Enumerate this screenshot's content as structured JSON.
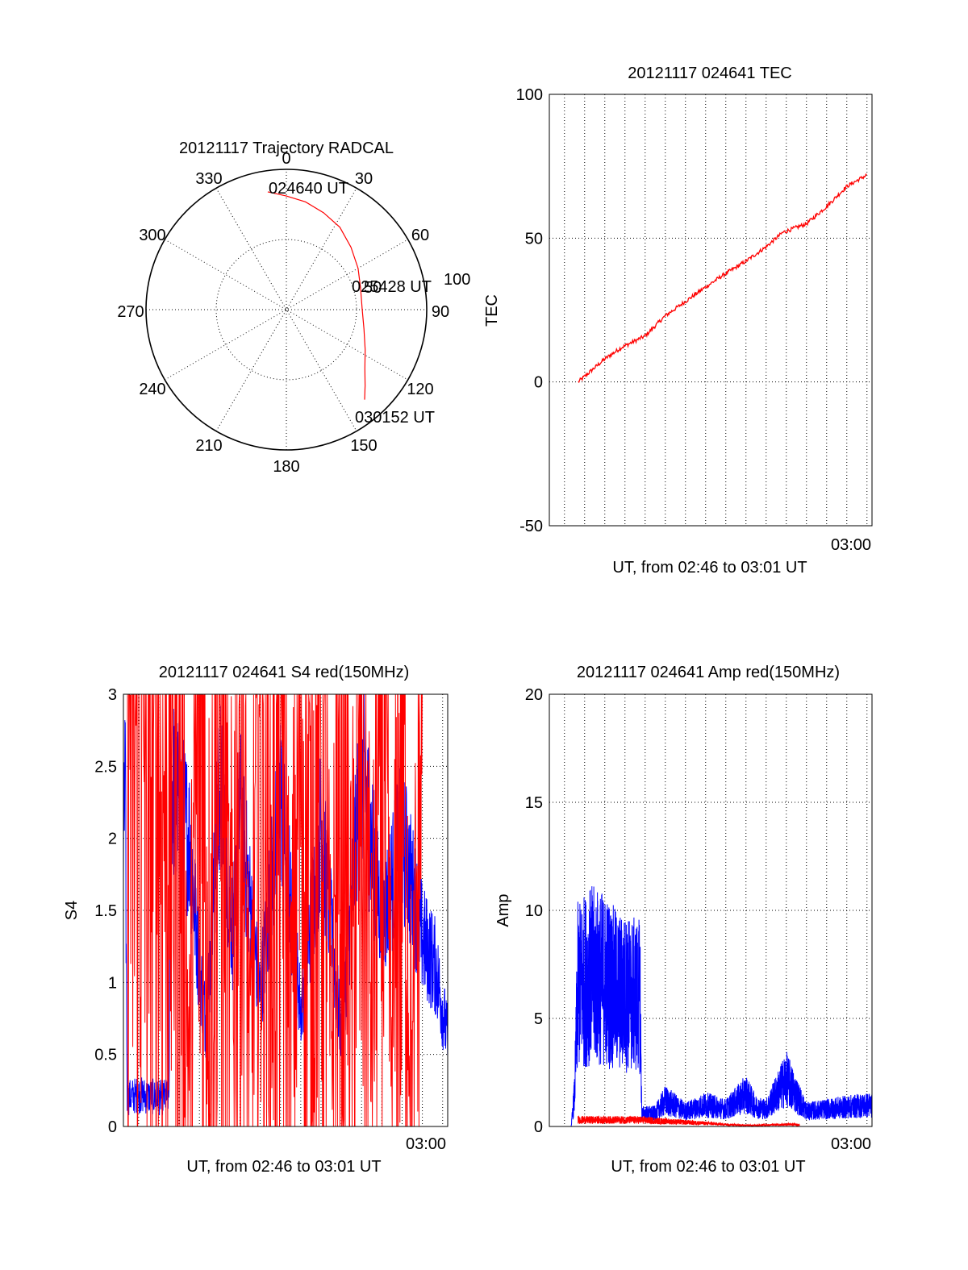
{
  "colors": {
    "red": "#ff0000",
    "blue": "#0000ff",
    "axis": "#000000",
    "grid": "#000000"
  },
  "chart_data": [
    {
      "type": "polar",
      "title": "20121117 Trajectory RADCAL",
      "angle_labels": [
        "0",
        "30",
        "60",
        "90",
        "120",
        "150",
        "180",
        "210",
        "240",
        "270",
        "300",
        "330"
      ],
      "radius_labels": [
        "50",
        "100"
      ],
      "rmax": 100,
      "grid": true,
      "trajectory": {
        "color": "red",
        "points": [
          {
            "az": 351,
            "zen": 85
          },
          {
            "az": 360,
            "zen": 81
          },
          {
            "az": 10,
            "zen": 78
          },
          {
            "az": 21,
            "zen": 74
          },
          {
            "az": 33,
            "zen": 70
          },
          {
            "az": 46,
            "zen": 64
          },
          {
            "az": 60,
            "zen": 59
          },
          {
            "az": 74,
            "zen": 55
          },
          {
            "az": 89,
            "zen": 54
          },
          {
            "az": 104,
            "zen": 57
          },
          {
            "az": 117,
            "zen": 63
          },
          {
            "az": 127,
            "zen": 70
          },
          {
            "az": 134,
            "zen": 78
          },
          {
            "az": 139,
            "zen": 85
          }
        ]
      },
      "annotations": [
        {
          "text": "024640 UT",
          "az": 351,
          "zen": 85
        },
        {
          "text": "025428 UT",
          "az": 88,
          "zen": 54
        },
        {
          "text": "030152 UT",
          "az": 139,
          "zen": 85
        }
      ]
    },
    {
      "type": "line",
      "title": "20121117 024641 TEC",
      "xlabel": "UT, from 02:46 to 03:01 UT",
      "ylabel": "TEC",
      "xlim": [
        "02:45:15",
        "03:01:15"
      ],
      "ylim": [
        -50,
        100
      ],
      "yticks": [
        -50,
        0,
        50,
        100
      ],
      "xtick_labels": [
        {
          "t": "03:00:00",
          "label": "03:00"
        }
      ],
      "grid": true,
      "series": [
        {
          "color": "red",
          "x": [
            "02:46:41",
            "02:48:00",
            "02:48:50",
            "02:50:00",
            "02:51:00",
            "02:52:00",
            "02:53:00",
            "02:53:50",
            "02:55:00",
            "02:56:00",
            "02:56:50",
            "02:58:00",
            "02:59:00",
            "03:00:00",
            "03:01:00"
          ],
          "y": [
            0,
            8,
            12,
            16,
            23,
            28,
            33,
            37,
            42,
            47,
            52,
            55,
            61,
            68,
            72
          ]
        }
      ]
    },
    {
      "type": "line",
      "title": "20121117 024641 S4 red(150MHz)",
      "xlabel": "UT, from 02:46 to 03:01 UT",
      "ylabel": "S4",
      "xlim": [
        "02:45:15",
        "03:01:15"
      ],
      "ylim": [
        0,
        3
      ],
      "yticks": [
        0,
        0.5,
        1,
        1.5,
        2,
        2.5,
        3
      ],
      "xtick_labels": [
        {
          "t": "03:00:00",
          "label": "03:00"
        }
      ],
      "grid": true,
      "series": [
        {
          "color": "blue",
          "x": [
            "02:45:15",
            "02:45:20",
            "02:45:26",
            "02:46:00",
            "02:47:00",
            "02:47:30",
            "02:47:35",
            "02:48:30",
            "02:49:00",
            "02:49:20",
            "02:49:40",
            "02:50:00",
            "02:50:40",
            "02:51:00",
            "02:52:00",
            "02:53:00",
            "02:54:00",
            "02:55:00",
            "02:56:00",
            "02:57:00",
            "02:58:00",
            "02:59:00",
            "03:00:00",
            "03:00:40",
            "03:01:15"
          ],
          "y": [
            1.8,
            2.5,
            0.2,
            0.22,
            0.2,
            0.21,
            2.4,
            2.0,
            1.1,
            0.7,
            1.5,
            2.4,
            1.3,
            2.2,
            0.9,
            2.3,
            0.8,
            2.1,
            0.6,
            2.5,
            1.4,
            2.0,
            1.3,
            1.1,
            0.6
          ]
        },
        {
          "color": "red",
          "x": [
            "02:45:26",
            "02:45:45",
            "02:46:10",
            "02:46:30",
            "02:46:50",
            "02:47:10",
            "02:47:30",
            "02:48:00",
            "02:48:30",
            "02:49:00",
            "02:49:30",
            "02:50:00",
            "02:50:30",
            "02:51:00",
            "02:51:30",
            "02:52:00",
            "02:52:30",
            "02:53:00",
            "02:53:30",
            "02:54:00",
            "02:54:30",
            "02:55:00",
            "02:55:30",
            "02:56:00",
            "02:56:30",
            "02:57:00",
            "02:57:30",
            "02:58:00",
            "02:58:30",
            "02:59:00",
            "02:59:30",
            "03:00:00"
          ],
          "y": [
            3,
            2.6,
            3,
            2.1,
            3,
            2.2,
            3,
            2.7,
            0.4,
            3,
            1.2,
            3,
            0.9,
            3,
            0.4,
            3,
            1.3,
            3,
            0.6,
            3,
            1.4,
            3,
            0.5,
            3,
            0.9,
            3,
            0.7,
            3,
            0.4,
            3,
            0.3,
            3
          ]
        }
      ]
    },
    {
      "type": "line",
      "title": "20121117 024641 Amp red(150MHz)",
      "xlabel": "UT, from 02:46 to 03:01 UT",
      "ylabel": "Amp",
      "xlim": [
        "02:45:15",
        "03:01:15"
      ],
      "ylim": [
        0,
        20
      ],
      "yticks": [
        0,
        5,
        10,
        15,
        20
      ],
      "xtick_labels": [
        {
          "t": "03:00:00",
          "label": "03:00"
        }
      ],
      "grid": true,
      "series": [
        {
          "color": "blue",
          "x": [
            "02:45:15",
            "02:46:20",
            "02:46:30",
            "02:46:40",
            "02:47:20",
            "02:48:00",
            "02:48:40",
            "02:49:45",
            "02:49:50",
            "02:50:30",
            "02:51:00",
            "02:52:00",
            "02:53:00",
            "02:54:00",
            "02:55:00",
            "02:55:30",
            "02:56:00",
            "02:57:00",
            "02:58:00",
            "02:59:00",
            "03:00:00",
            "03:01:15"
          ],
          "y": [
            0,
            0,
            1.5,
            6.5,
            7.0,
            6.8,
            6.2,
            6.0,
            0.6,
            0.6,
            1.2,
            0.7,
            1.0,
            0.8,
            1.5,
            0.9,
            0.8,
            2.2,
            0.7,
            0.8,
            0.9,
            1.0
          ]
        },
        {
          "color": "red",
          "x": [
            "02:46:40",
            "02:47:20",
            "02:48:00",
            "02:48:40",
            "02:49:45",
            "02:55:00",
            "02:57:30",
            "02:57:40"
          ],
          "y": [
            0.3,
            0.3,
            0.3,
            0.3,
            0.3,
            0.05,
            0.1,
            0.05
          ]
        }
      ]
    }
  ]
}
